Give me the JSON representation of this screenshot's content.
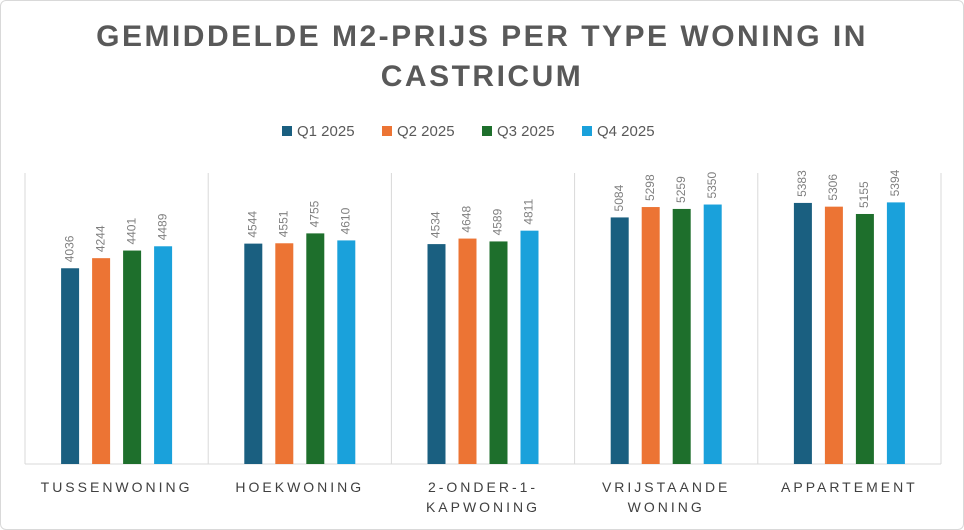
{
  "chart_data": {
    "type": "bar",
    "title": "GEMIDDELDE M2-PRIJS PER TYPE WONING IN CASTRICUM",
    "categories": [
      "TUSSENWONING",
      "HOEKWONING",
      "2-ONDER-1-KAPWONING",
      "VRIJSTAANDE WONING",
      "APPARTEMENT"
    ],
    "series": [
      {
        "name": "Q1 2025",
        "color": "#1a5f80",
        "values": [
          4036,
          4544,
          4534,
          5084,
          5383
        ]
      },
      {
        "name": "Q2 2025",
        "color": "#ec7434",
        "values": [
          4244,
          4551,
          4648,
          5298,
          5306
        ]
      },
      {
        "name": "Q3 2025",
        "color": "#1e6f2c",
        "values": [
          4401,
          4755,
          4589,
          5259,
          5155
        ]
      },
      {
        "name": "Q4 2025",
        "color": "#1aa1db",
        "values": [
          4489,
          4610,
          4811,
          5350,
          5394
        ]
      }
    ],
    "ylim": [
      0,
      6000
    ],
    "legend": "top"
  }
}
